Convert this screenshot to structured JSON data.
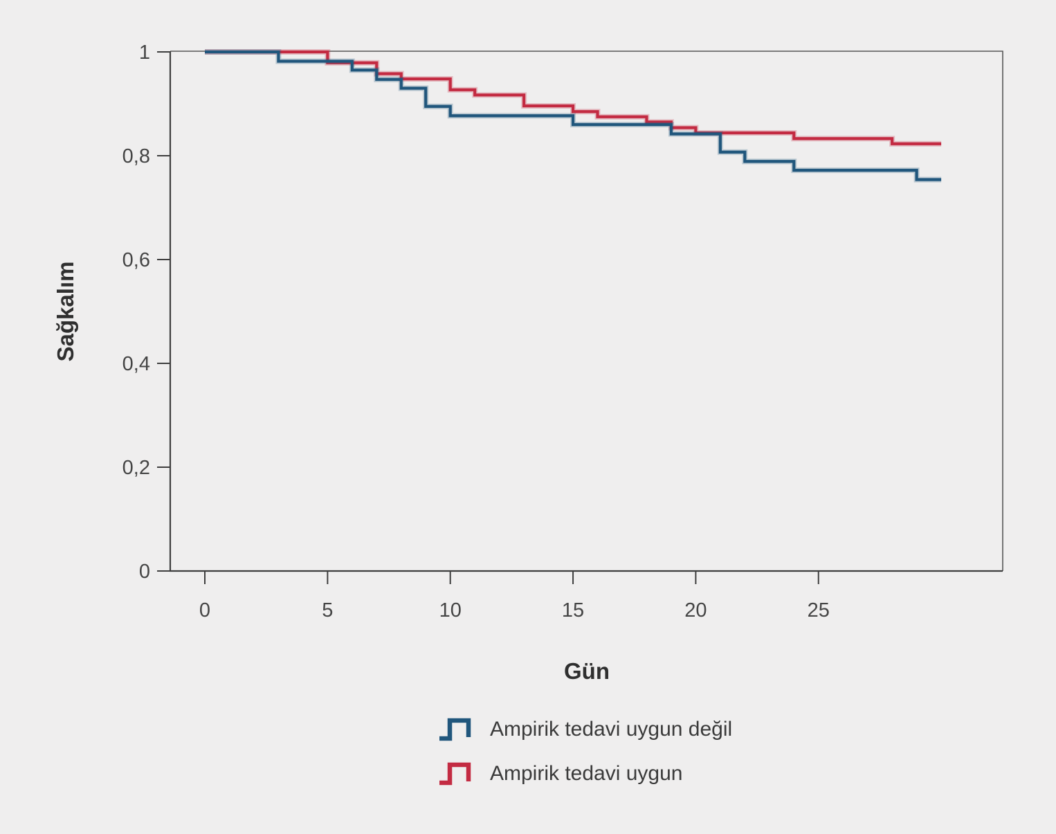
{
  "chart_data": {
    "type": "step",
    "chart_kind": "kaplan-meier-survival-curve",
    "title": "",
    "xlabel": "Gün",
    "ylabel": "Sağkalım",
    "xlim": [
      -1.4,
      32.5
    ],
    "ylim": [
      0,
      1.003
    ],
    "x_ticks": [
      0,
      5,
      10,
      15,
      20,
      25
    ],
    "x_tick_labels": [
      "0",
      "5",
      "10",
      "15",
      "20",
      "25"
    ],
    "y_ticks": [
      1,
      0.8,
      0.6,
      0.4,
      0.2,
      0
    ],
    "y_tick_labels": [
      "1",
      "0,8",
      "0,6",
      "0,4",
      "0,2",
      "0"
    ],
    "grid": false,
    "legend_position": "bottom-center",
    "background_color": "#efeeee",
    "axis_color": "#3e3e3e",
    "series": [
      {
        "name": "Ampirik tedavi uygun değil",
        "color": "#20567c",
        "steps": [
          [
            0,
            1
          ],
          [
            3,
            0.982
          ],
          [
            6,
            0.965
          ],
          [
            7,
            0.947
          ],
          [
            8,
            0.93
          ],
          [
            9,
            0.895
          ],
          [
            10,
            0.877
          ],
          [
            15,
            0.86
          ],
          [
            19,
            0.842
          ],
          [
            21,
            0.807
          ],
          [
            22,
            0.789
          ],
          [
            24,
            0.772
          ],
          [
            29,
            0.754
          ],
          [
            30,
            0.754
          ]
        ]
      },
      {
        "name": "Ampirik tedavi uygun",
        "color": "#c32b42",
        "steps": [
          [
            0,
            1
          ],
          [
            5,
            0.979
          ],
          [
            7,
            0.958
          ],
          [
            8,
            0.948
          ],
          [
            10,
            0.927
          ],
          [
            11,
            0.917
          ],
          [
            13,
            0.896
          ],
          [
            15,
            0.885
          ],
          [
            16,
            0.875
          ],
          [
            18,
            0.865
          ],
          [
            19,
            0.854
          ],
          [
            20,
            0.844
          ],
          [
            24,
            0.833
          ],
          [
            28,
            0.823
          ],
          [
            30,
            0.823
          ]
        ]
      }
    ]
  }
}
